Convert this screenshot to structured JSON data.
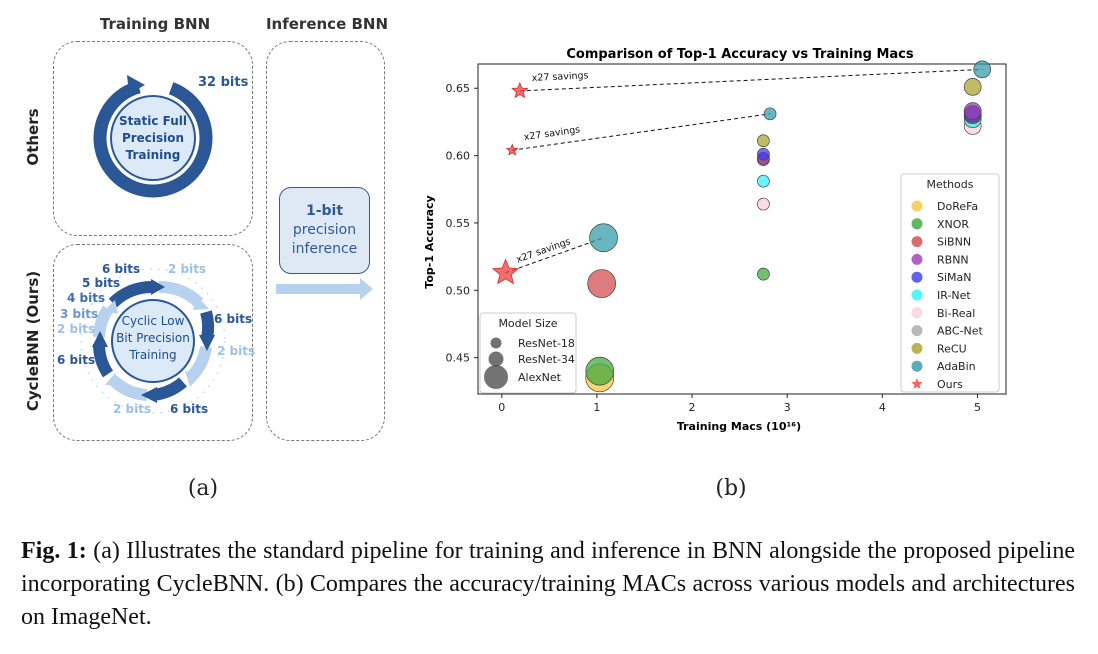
{
  "panel_a": {
    "col_training": "Training BNN",
    "col_inference": "Inference BNN",
    "row_others": "Others",
    "row_ours": "CycleBNN (Ours)",
    "others_ring_lines": [
      "Static Full",
      "Precision",
      "Training"
    ],
    "others_bits": "32 bits",
    "ours_ring_lines": [
      "Cyclic Low",
      "Bit Precision",
      "Training"
    ],
    "ours_bits": {
      "top_dark": "6 bits",
      "top_light": "2 bits",
      "right_dark": "6 bits",
      "right_light": "2 bits",
      "bottom_dark": "6 bits",
      "bottom_light": "2 bits",
      "left_dark": "6 bits",
      "left_stack": [
        "5 bits",
        "4 bits",
        "3 bits",
        "2 bits"
      ]
    },
    "inference_lines": [
      "1-bit",
      "precision",
      "inference"
    ],
    "colors": {
      "dark_blue": "#2b5797",
      "light_blue": "#b7d2ee",
      "fill": "#dce9f6",
      "text_blue": "#1f4e8c"
    },
    "label": "(a)"
  },
  "panel_b_label": "(b)",
  "caption": {
    "fig": "Fig. 1:",
    "text": "(a) Illustrates the standard pipeline for training and inference in BNN alongside the proposed pipeline incorporating CycleBNN. (b) Compares the accuracy/training MACs across various models and architectures on ImageNet."
  },
  "chart_data": {
    "type": "scatter",
    "title": "Comparison of Top-1 Accuracy vs Training Macs",
    "xlabel": "Training Macs (10¹⁶)",
    "ylabel": "Top-1 Accuracy",
    "xlim": [
      -0.25,
      5.3
    ],
    "ylim": [
      0.423,
      0.668
    ],
    "xticks": [
      0,
      1,
      2,
      3,
      4,
      5
    ],
    "yticks": [
      0.45,
      0.5,
      0.55,
      0.6,
      0.65
    ],
    "ytick_labels": [
      "0.45",
      "0.50",
      "0.55",
      "0.60",
      "0.65"
    ],
    "grid": true,
    "legend_methods": {
      "title": "Methods",
      "position": "right",
      "items": [
        {
          "name": "DoReFa",
          "color": "#f6c53d"
        },
        {
          "name": "XNOR",
          "color": "#3aa63a"
        },
        {
          "name": "SiBNN",
          "color": "#cf4a4a"
        },
        {
          "name": "RBNN",
          "color": "#9a3fb0"
        },
        {
          "name": "SiMaN",
          "color": "#3b3be8"
        },
        {
          "name": "IR-Net",
          "color": "#2ef0f6"
        },
        {
          "name": "Bi-Real",
          "color": "#f9cfd8"
        },
        {
          "name": "ABC-Net",
          "color": "#a8a8a8"
        },
        {
          "name": "ReCU",
          "color": "#a6a22a"
        },
        {
          "name": "AdaBin",
          "color": "#2f9aa8"
        },
        {
          "name": "Ours",
          "color": "#ee3e3e",
          "marker": "star"
        }
      ]
    },
    "legend_size": {
      "title": "Model Size",
      "position": "bottom-left",
      "items": [
        "ResNet-18",
        "ResNet-34",
        "AlexNet"
      ]
    },
    "points": [
      {
        "method": "DoReFa",
        "x": 1.03,
        "y": 0.435,
        "size": "AlexNet"
      },
      {
        "method": "XNOR",
        "x": 1.03,
        "y": 0.44,
        "size": "AlexNet"
      },
      {
        "method": "XNOR",
        "x": 2.75,
        "y": 0.512,
        "size": "ResNet-18"
      },
      {
        "method": "SiBNN",
        "x": 1.05,
        "y": 0.505,
        "size": "AlexNet"
      },
      {
        "method": "AdaBin",
        "x": 1.07,
        "y": 0.539,
        "size": "AlexNet"
      },
      {
        "method": "Bi-Real",
        "x": 2.75,
        "y": 0.564,
        "size": "ResNet-18"
      },
      {
        "method": "IR-Net",
        "x": 2.75,
        "y": 0.581,
        "size": "ResNet-18"
      },
      {
        "method": "SiBNN",
        "x": 2.75,
        "y": 0.597,
        "size": "ResNet-18"
      },
      {
        "method": "RBNN",
        "x": 2.75,
        "y": 0.598,
        "size": "ResNet-18"
      },
      {
        "method": "SiMaN",
        "x": 2.75,
        "y": 0.601,
        "size": "ResNet-18"
      },
      {
        "method": "ReCU",
        "x": 2.75,
        "y": 0.611,
        "size": "ResNet-18"
      },
      {
        "method": "AdaBin",
        "x": 2.82,
        "y": 0.631,
        "size": "ResNet-18"
      },
      {
        "method": "Bi-Real",
        "x": 4.95,
        "y": 0.622,
        "size": "ResNet-34"
      },
      {
        "method": "IR-Net",
        "x": 4.95,
        "y": 0.627,
        "size": "ResNet-34"
      },
      {
        "method": "SiBNN",
        "x": 4.95,
        "y": 0.63,
        "size": "ResNet-34"
      },
      {
        "method": "SiMaN",
        "x": 4.95,
        "y": 0.631,
        "size": "ResNet-34"
      },
      {
        "method": "RBNN",
        "x": 4.95,
        "y": 0.633,
        "size": "ResNet-34"
      },
      {
        "method": "ReCU",
        "x": 4.95,
        "y": 0.651,
        "size": "ResNet-34"
      },
      {
        "method": "AdaBin",
        "x": 5.05,
        "y": 0.664,
        "size": "ResNet-34"
      },
      {
        "method": "Ours",
        "x": 0.19,
        "y": 0.648,
        "size": "ResNet-34"
      },
      {
        "method": "Ours",
        "x": 0.11,
        "y": 0.604,
        "size": "ResNet-18"
      },
      {
        "method": "Ours",
        "x": 0.04,
        "y": 0.513,
        "size": "AlexNet"
      }
    ],
    "annotations": [
      {
        "text": "x27 savings",
        "from": [
          0.19,
          0.648
        ],
        "to": [
          5.05,
          0.664
        ]
      },
      {
        "text": "x27 savings",
        "from": [
          0.11,
          0.604
        ],
        "to": [
          2.82,
          0.631
        ]
      },
      {
        "text": "x27 savings",
        "from": [
          0.04,
          0.513
        ],
        "to": [
          1.07,
          0.539
        ]
      }
    ]
  }
}
